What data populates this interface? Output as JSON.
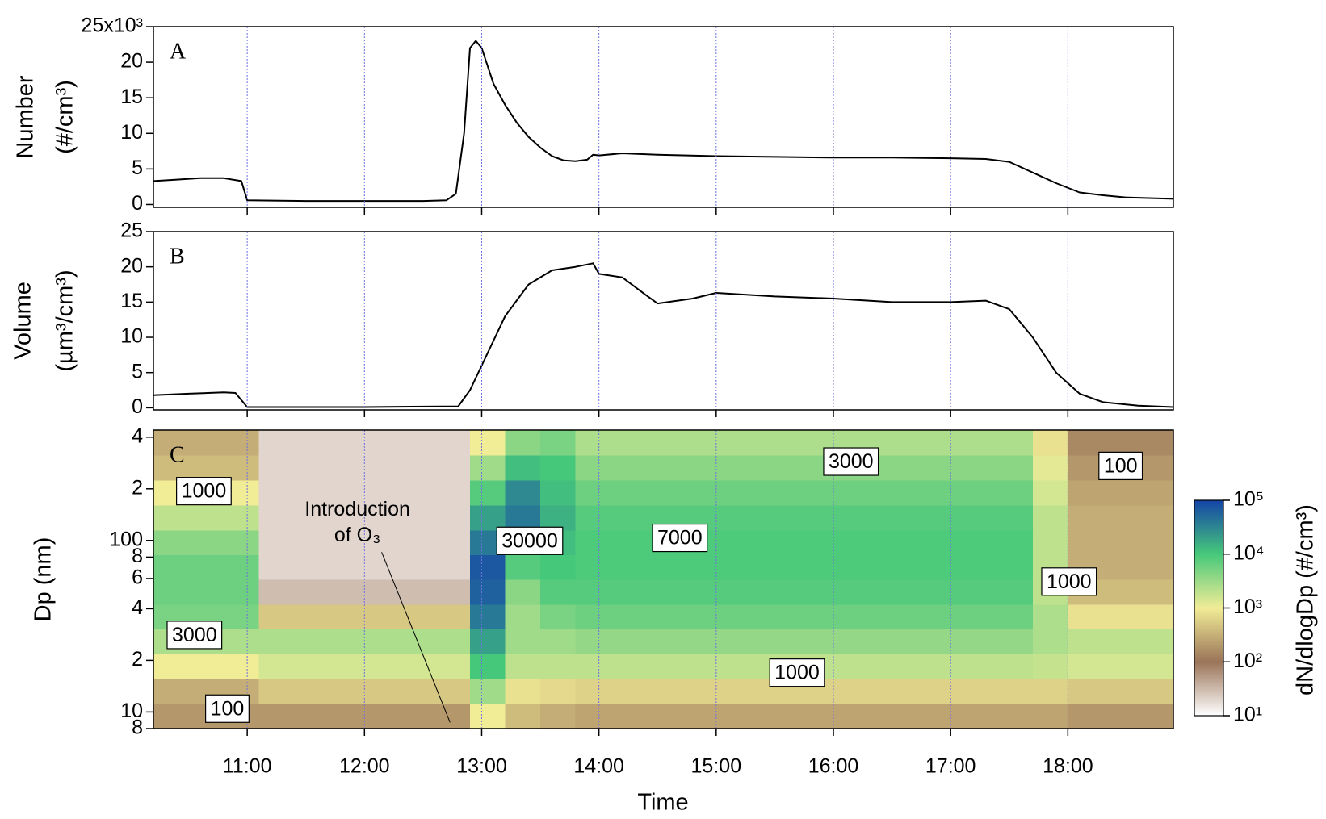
{
  "chart_data": [
    {
      "type": "line",
      "label": "A",
      "ylabel": [
        "Number",
        "(#/cm³)"
      ],
      "x": [
        10.2,
        10.4,
        10.6,
        10.8,
        10.95,
        11.0,
        11.5,
        12.0,
        12.5,
        12.7,
        12.78,
        12.85,
        12.9,
        12.95,
        13.0,
        13.1,
        13.2,
        13.3,
        13.4,
        13.5,
        13.6,
        13.7,
        13.8,
        13.9,
        13.95,
        14.0,
        14.2,
        14.5,
        15.0,
        15.5,
        16.0,
        16.5,
        17.0,
        17.3,
        17.5,
        17.7,
        17.9,
        18.1,
        18.3,
        18.5,
        18.9
      ],
      "series": [
        {
          "color": "#000000",
          "values": [
            3300,
            3500,
            3700,
            3700,
            3300,
            600,
            500,
            500,
            500,
            600,
            1500,
            10000,
            22000,
            23000,
            22000,
            17000,
            14000,
            11500,
            9500,
            8000,
            6800,
            6200,
            6100,
            6300,
            7000,
            6900,
            7200,
            7000,
            6800,
            6700,
            6600,
            6600,
            6500,
            6400,
            6000,
            4500,
            3000,
            1700,
            1300,
            1000,
            800
          ]
        }
      ],
      "xlim": [
        10.2,
        18.9
      ],
      "xticks": [
        11,
        12,
        13,
        14,
        15,
        16,
        17,
        18
      ],
      "ylim": [
        -400,
        25000
      ],
      "yticks": [
        0,
        {
          "value": 5000,
          "label": "5"
        },
        {
          "value": 10000,
          "label": "10"
        },
        {
          "value": 15000,
          "label": "15"
        },
        {
          "value": 20000,
          "label": "20"
        },
        {
          "value": 25000,
          "label": "25x10³"
        }
      ],
      "grid": "x",
      "grid_color": "#7070e0"
    },
    {
      "type": "line",
      "label": "B",
      "ylabel": [
        "Volume",
        "(µm³/cm³)"
      ],
      "x": [
        10.2,
        10.5,
        10.8,
        10.9,
        11.0,
        12.0,
        12.8,
        12.9,
        13.0,
        13.2,
        13.4,
        13.6,
        13.8,
        13.95,
        14.0,
        14.2,
        14.4,
        14.5,
        14.8,
        15.0,
        15.5,
        16.0,
        16.5,
        17.0,
        17.3,
        17.5,
        17.7,
        17.9,
        18.1,
        18.3,
        18.6,
        18.9
      ],
      "series": [
        {
          "color": "#000000",
          "values": [
            1.8,
            2.0,
            2.2,
            2.1,
            0.1,
            0.1,
            0.2,
            2.5,
            6,
            13,
            17.5,
            19.5,
            20,
            20.5,
            19,
            18.5,
            16,
            14.8,
            15.5,
            16.3,
            15.8,
            15.5,
            15.0,
            15,
            15.2,
            14,
            10,
            5,
            2,
            0.8,
            0.3,
            0.1
          ]
        }
      ],
      "xlim": [
        10.2,
        18.9
      ],
      "xticks": [
        11,
        12,
        13,
        14,
        15,
        16,
        17,
        18
      ],
      "ylim": [
        -0.3,
        25
      ],
      "yticks": [
        0,
        5,
        10,
        15,
        20,
        25
      ],
      "grid": "x",
      "grid_color": "#7070e0"
    },
    {
      "type": "heatmap",
      "label": "C",
      "ylabel": [
        "Dp (nm)"
      ],
      "xlabel": "Time",
      "x_edges": [
        10.2,
        10.5,
        10.8,
        11.1,
        11.4,
        11.7,
        12.0,
        12.3,
        12.6,
        12.9,
        13.2,
        13.5,
        13.8,
        14.1,
        14.4,
        14.7,
        15.0,
        15.3,
        15.6,
        15.9,
        16.2,
        16.5,
        16.8,
        17.1,
        17.4,
        17.7,
        18.0,
        18.3,
        18.6,
        18.9
      ],
      "y_edges": [
        8,
        11.2,
        15.6,
        21.8,
        30.4,
        42.4,
        59.2,
        82.7,
        115,
        161,
        225,
        314,
        440
      ],
      "z": [
        [
          200,
          200,
          200,
          200,
          200,
          200,
          200,
          200,
          200,
          1000,
          400,
          300,
          250,
          250,
          250,
          250,
          250,
          250,
          250,
          250,
          250,
          250,
          250,
          250,
          250,
          250,
          200,
          200,
          200
        ],
        [
          300,
          300,
          300,
          500,
          500,
          500,
          500,
          500,
          500,
          3000,
          800,
          700,
          600,
          600,
          600,
          600,
          600,
          600,
          600,
          600,
          600,
          600,
          600,
          600,
          600,
          600,
          500,
          500,
          500
        ],
        [
          1000,
          1000,
          1000,
          1500,
          1500,
          1500,
          1500,
          1500,
          1500,
          10000,
          2000,
          2000,
          2000,
          2000,
          2000,
          2000,
          2000,
          2000,
          2000,
          2000,
          2000,
          2000,
          2000,
          2000,
          2000,
          1800,
          1500,
          1500,
          1500
        ],
        [
          2500,
          2500,
          2500,
          2500,
          2500,
          2500,
          2500,
          2500,
          2500,
          20000,
          3000,
          3000,
          3500,
          3500,
          3500,
          3500,
          3500,
          3500,
          3500,
          3500,
          3500,
          3500,
          3500,
          3500,
          3500,
          2500,
          2000,
          2000,
          2000
        ],
        [
          5000,
          5000,
          5000,
          500,
          500,
          500,
          500,
          500,
          500,
          40000,
          3000,
          5000,
          6000,
          6000,
          6000,
          6000,
          6000,
          6000,
          6000,
          6000,
          6000,
          6000,
          6000,
          6000,
          6000,
          2500,
          800,
          800,
          800
        ],
        [
          6000,
          6000,
          6000,
          30,
          30,
          30,
          30,
          30,
          30,
          60000,
          4000,
          8000,
          8000,
          8000,
          8000,
          8000,
          8000,
          8000,
          8000,
          8000,
          8000,
          8000,
          8000,
          8000,
          8000,
          2000,
          400,
          400,
          400
        ],
        [
          6000,
          6000,
          6000,
          20,
          20,
          20,
          20,
          20,
          20,
          70000,
          8000,
          10000,
          9000,
          9000,
          9000,
          9000,
          9000,
          9000,
          9000,
          9000,
          9000,
          9000,
          9000,
          9000,
          9000,
          2000,
          300,
          300,
          300
        ],
        [
          4000,
          4000,
          4000,
          20,
          20,
          20,
          20,
          20,
          20,
          40000,
          15000,
          12000,
          9000,
          9000,
          9000,
          9000,
          9000,
          9000,
          9000,
          9000,
          9000,
          9000,
          9000,
          9000,
          9000,
          2000,
          300,
          300,
          300
        ],
        [
          2000,
          2000,
          2000,
          20,
          20,
          20,
          20,
          20,
          20,
          20000,
          40000,
          15000,
          8000,
          8000,
          8000,
          8000,
          8000,
          8000,
          8000,
          8000,
          8000,
          8000,
          8000,
          8000,
          8000,
          2000,
          300,
          300,
          300
        ],
        [
          1000,
          1000,
          1000,
          20,
          20,
          20,
          20,
          20,
          20,
          8000,
          30000,
          12000,
          6000,
          6000,
          6000,
          6000,
          6000,
          6000,
          6000,
          6000,
          6000,
          6000,
          6000,
          6000,
          6000,
          1500,
          250,
          250,
          250
        ],
        [
          400,
          400,
          400,
          20,
          20,
          20,
          20,
          20,
          20,
          3000,
          12000,
          10000,
          4000,
          4000,
          4000,
          4000,
          4000,
          4000,
          4000,
          4000,
          4000,
          4000,
          4000,
          4000,
          4000,
          1200,
          200,
          200,
          200
        ],
        [
          300,
          300,
          300,
          20,
          20,
          20,
          20,
          20,
          20,
          1000,
          4000,
          5000,
          2500,
          2500,
          2500,
          2500,
          2500,
          2500,
          2500,
          2500,
          2500,
          2500,
          2500,
          2500,
          2500,
          800,
          150,
          150,
          150
        ]
      ],
      "xlim": [
        10.2,
        18.9
      ],
      "xticks": [
        {
          "value": 11,
          "label": "11:00"
        },
        {
          "value": 12,
          "label": "12:00"
        },
        {
          "value": 13,
          "label": "13:00"
        },
        {
          "value": 14,
          "label": "14:00"
        },
        {
          "value": 15,
          "label": "15:00"
        },
        {
          "value": 16,
          "label": "16:00"
        },
        {
          "value": 17,
          "label": "17:00"
        },
        {
          "value": 18,
          "label": "18:00"
        }
      ],
      "yscale": "log",
      "ylim": [
        8,
        440
      ],
      "yticks": [
        8,
        10,
        {
          "value": 20,
          "label": "2"
        },
        {
          "value": 40,
          "label": "4"
        },
        {
          "value": 60,
          "label": "6"
        },
        {
          "value": 80,
          "label": "8"
        },
        100,
        {
          "value": 200,
          "label": "2"
        },
        {
          "value": 400,
          "label": "4"
        }
      ],
      "grid": "x",
      "grid_color": "#7070e0",
      "colorbar": {
        "label": "dN/dlogDp (#/cm³)",
        "scale": "log",
        "zlim": [
          10,
          100000
        ],
        "zticks": [
          {
            "value": 10,
            "label": "10¹"
          },
          {
            "value": 100,
            "label": "10²"
          },
          {
            "value": 1000,
            "label": "10³"
          },
          {
            "value": 10000,
            "label": "10⁴"
          },
          {
            "value": 100000,
            "label": "10⁵"
          }
        ],
        "colors": [
          "#ffffff",
          "#9a7458",
          "#f1ec96",
          "#46c87a",
          "#1444a8"
        ]
      },
      "annotations": [
        {
          "text": "1000",
          "x": 10.63,
          "y": 191
        },
        {
          "text": "3000",
          "x": 10.55,
          "y": 27.7
        },
        {
          "text": "100",
          "x": 10.83,
          "y": 10.3
        },
        {
          "text": "30000",
          "x": 13.41,
          "y": 98
        },
        {
          "text": "7000",
          "x": 14.69,
          "y": 102
        },
        {
          "text": "3000",
          "x": 16.15,
          "y": 284
        },
        {
          "text": "1000",
          "x": 15.69,
          "y": 16.7
        },
        {
          "text": "100",
          "x": 18.45,
          "y": 268
        },
        {
          "text": "1000",
          "x": 18.01,
          "y": 56.7
        }
      ],
      "arrow_annotation": {
        "text": [
          "Introduction",
          "of O₃"
        ],
        "xy": [
          12.73,
          8.7
        ],
        "xytext": [
          11.94,
          150
        ]
      }
    }
  ]
}
